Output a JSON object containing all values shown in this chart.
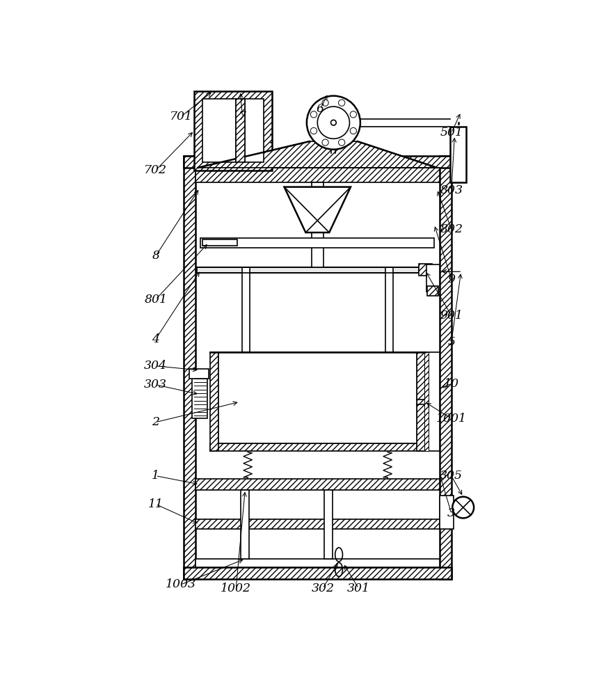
{
  "bg": "#ffffff",
  "lc": "#000000",
  "figsize": [
    8.61,
    10.0
  ],
  "dpi": 100,
  "labels": [
    [
      "701",
      195,
      938
    ],
    [
      "7",
      310,
      938
    ],
    [
      "6",
      455,
      952
    ],
    [
      "501",
      700,
      908
    ],
    [
      "702",
      148,
      838
    ],
    [
      "803",
      700,
      800
    ],
    [
      "802",
      700,
      728
    ],
    [
      "8",
      148,
      678
    ],
    [
      "9",
      700,
      635
    ],
    [
      "801",
      148,
      597
    ],
    [
      "901",
      700,
      567
    ],
    [
      "4",
      148,
      523
    ],
    [
      "5",
      700,
      517
    ],
    [
      "304",
      148,
      473
    ],
    [
      "303",
      148,
      438
    ],
    [
      "10",
      700,
      440
    ],
    [
      "2",
      148,
      368
    ],
    [
      "1001",
      700,
      375
    ],
    [
      "1",
      148,
      268
    ],
    [
      "305",
      700,
      268
    ],
    [
      "11",
      148,
      215
    ],
    [
      "3",
      700,
      198
    ],
    [
      "1003",
      195,
      65
    ],
    [
      "1002",
      298,
      58
    ],
    [
      "302",
      460,
      58
    ],
    [
      "301",
      527,
      58
    ]
  ]
}
